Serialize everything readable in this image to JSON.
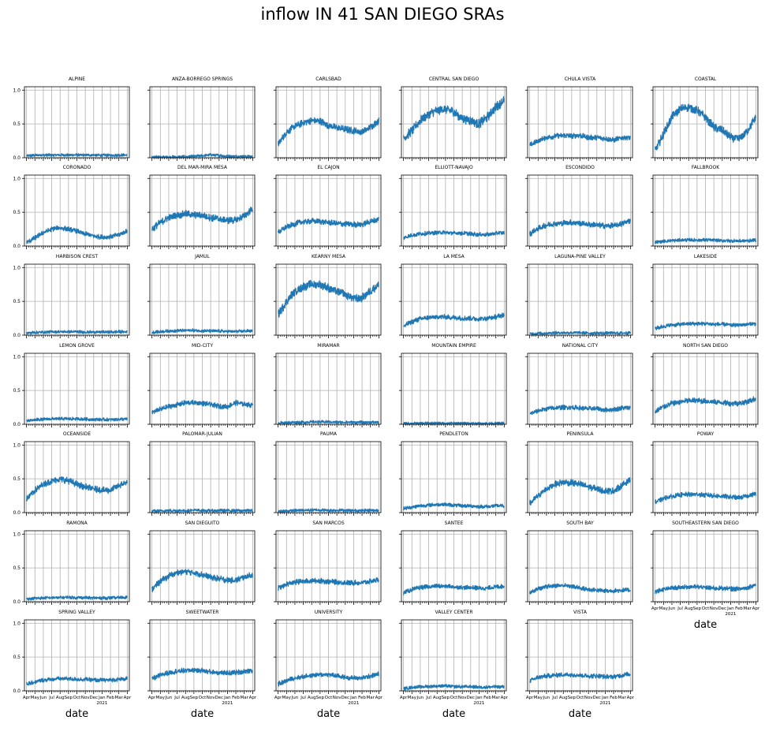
{
  "figure": {
    "title": "inflow IN 41 SAN DIEGO SRAs"
  },
  "chart_data": {
    "type": "line",
    "layout": "small-multiples",
    "x_axis": {
      "start": "2020-04",
      "end": "2021-04",
      "tick_labels": [
        "Apr",
        "May",
        "Jun",
        "Jul",
        "Aug",
        "Sep",
        "Oct",
        "Nov",
        "Dec",
        "Jan",
        "Feb",
        "Mar",
        "Apr"
      ],
      "year_label": "2021",
      "xlabel": "date"
    },
    "y_axis": {
      "ylim": [
        0,
        1.05
      ],
      "ticks": [
        0.0,
        0.5,
        1.0
      ],
      "tick_labels": [
        "0.0",
        "0.5",
        "1.0"
      ]
    },
    "grid": true,
    "series_color": "#1f77b4",
    "series": [
      {
        "name": "ALPINE",
        "values": [
          0.03,
          0.035,
          0.04,
          0.04,
          0.04,
          0.04,
          0.04,
          0.04,
          0.04,
          0.035,
          0.035,
          0.04,
          0.04
        ]
      },
      {
        "name": "ANZA-BORREGO SPRINGS",
        "values": [
          0.01,
          0.01,
          0.01,
          0.01,
          0.015,
          0.02,
          0.03,
          0.045,
          0.035,
          0.02,
          0.02,
          0.02,
          0.02
        ]
      },
      {
        "name": "CARLSBAD",
        "values": [
          0.2,
          0.38,
          0.46,
          0.52,
          0.55,
          0.54,
          0.48,
          0.44,
          0.42,
          0.4,
          0.38,
          0.45,
          0.55
        ]
      },
      {
        "name": "CENTRAL SAN DIEGO",
        "values": [
          0.28,
          0.4,
          0.55,
          0.65,
          0.7,
          0.72,
          0.68,
          0.58,
          0.55,
          0.5,
          0.6,
          0.75,
          0.85
        ]
      },
      {
        "name": "CHULA VISTA",
        "values": [
          0.18,
          0.25,
          0.3,
          0.32,
          0.33,
          0.32,
          0.33,
          0.3,
          0.3,
          0.28,
          0.26,
          0.3,
          0.3
        ]
      },
      {
        "name": "COASTAL",
        "values": [
          0.1,
          0.35,
          0.6,
          0.72,
          0.75,
          0.7,
          0.6,
          0.45,
          0.4,
          0.3,
          0.28,
          0.4,
          0.6
        ]
      },
      {
        "name": "CORONADO",
        "values": [
          0.05,
          0.12,
          0.2,
          0.25,
          0.27,
          0.25,
          0.22,
          0.18,
          0.15,
          0.13,
          0.14,
          0.17,
          0.22
        ]
      },
      {
        "name": "DEL MAR-MIRA MESA",
        "values": [
          0.25,
          0.35,
          0.42,
          0.45,
          0.48,
          0.46,
          0.45,
          0.42,
          0.4,
          0.38,
          0.38,
          0.45,
          0.55
        ]
      },
      {
        "name": "EL CAJON",
        "values": [
          0.2,
          0.28,
          0.33,
          0.36,
          0.37,
          0.36,
          0.35,
          0.33,
          0.33,
          0.32,
          0.32,
          0.36,
          0.4
        ]
      },
      {
        "name": "ELLIOTT-NAVAJO",
        "values": [
          0.12,
          0.16,
          0.18,
          0.19,
          0.2,
          0.2,
          0.19,
          0.19,
          0.18,
          0.17,
          0.17,
          0.19,
          0.2
        ]
      },
      {
        "name": "ESCONDIDO",
        "values": [
          0.18,
          0.26,
          0.31,
          0.33,
          0.34,
          0.35,
          0.34,
          0.32,
          0.31,
          0.3,
          0.3,
          0.33,
          0.38
        ]
      },
      {
        "name": "FALLBROOK",
        "values": [
          0.06,
          0.07,
          0.08,
          0.085,
          0.09,
          0.09,
          0.09,
          0.085,
          0.08,
          0.08,
          0.075,
          0.08,
          0.085
        ]
      },
      {
        "name": "HARBISON CREST",
        "values": [
          0.03,
          0.04,
          0.045,
          0.05,
          0.05,
          0.05,
          0.05,
          0.045,
          0.045,
          0.045,
          0.045,
          0.05,
          0.05
        ]
      },
      {
        "name": "JAMUL",
        "values": [
          0.04,
          0.05,
          0.06,
          0.065,
          0.07,
          0.07,
          0.065,
          0.06,
          0.06,
          0.055,
          0.055,
          0.06,
          0.065
        ]
      },
      {
        "name": "KEARNY MESA",
        "values": [
          0.3,
          0.5,
          0.65,
          0.72,
          0.75,
          0.75,
          0.7,
          0.65,
          0.6,
          0.55,
          0.55,
          0.65,
          0.75
        ]
      },
      {
        "name": "LA MESA",
        "values": [
          0.13,
          0.2,
          0.24,
          0.26,
          0.27,
          0.27,
          0.26,
          0.25,
          0.25,
          0.24,
          0.25,
          0.27,
          0.3
        ]
      },
      {
        "name": "LAGUNA-PINE VALLEY",
        "values": [
          0.02,
          0.025,
          0.03,
          0.035,
          0.035,
          0.035,
          0.035,
          0.03,
          0.03,
          0.03,
          0.03,
          0.03,
          0.035
        ]
      },
      {
        "name": "LAKESIDE",
        "values": [
          0.1,
          0.13,
          0.15,
          0.16,
          0.17,
          0.17,
          0.17,
          0.16,
          0.16,
          0.15,
          0.15,
          0.16,
          0.17
        ]
      },
      {
        "name": "LEMON GROVE",
        "values": [
          0.05,
          0.065,
          0.075,
          0.08,
          0.08,
          0.08,
          0.08,
          0.075,
          0.07,
          0.07,
          0.07,
          0.075,
          0.08
        ]
      },
      {
        "name": "MID-CITY",
        "values": [
          0.18,
          0.22,
          0.26,
          0.29,
          0.32,
          0.32,
          0.31,
          0.29,
          0.27,
          0.26,
          0.32,
          0.3,
          0.28
        ]
      },
      {
        "name": "MIRAMAR",
        "values": [
          0.02,
          0.025,
          0.03,
          0.03,
          0.035,
          0.035,
          0.035,
          0.03,
          0.03,
          0.03,
          0.03,
          0.03,
          0.03
        ]
      },
      {
        "name": "MOUNTAIN EMPIRE",
        "values": [
          0.01,
          0.012,
          0.015,
          0.015,
          0.015,
          0.015,
          0.015,
          0.015,
          0.012,
          0.012,
          0.012,
          0.012,
          0.015
        ]
      },
      {
        "name": "NATIONAL CITY",
        "values": [
          0.15,
          0.2,
          0.23,
          0.24,
          0.25,
          0.25,
          0.24,
          0.23,
          0.23,
          0.21,
          0.22,
          0.24,
          0.25
        ]
      },
      {
        "name": "NORTH SAN DIEGO",
        "values": [
          0.18,
          0.26,
          0.31,
          0.33,
          0.35,
          0.35,
          0.34,
          0.33,
          0.32,
          0.31,
          0.31,
          0.34,
          0.38
        ]
      },
      {
        "name": "OCEANSIDE",
        "values": [
          0.2,
          0.33,
          0.42,
          0.47,
          0.5,
          0.47,
          0.42,
          0.38,
          0.35,
          0.33,
          0.33,
          0.4,
          0.45
        ]
      },
      {
        "name": "PALOMAR-JULIAN",
        "values": [
          0.02,
          0.025,
          0.03,
          0.03,
          0.03,
          0.035,
          0.03,
          0.03,
          0.03,
          0.03,
          0.03,
          0.03,
          0.03
        ]
      },
      {
        "name": "PAUMA",
        "values": [
          0.02,
          0.025,
          0.03,
          0.035,
          0.035,
          0.04,
          0.035,
          0.035,
          0.035,
          0.03,
          0.03,
          0.035,
          0.035
        ]
      },
      {
        "name": "PENDLETON",
        "values": [
          0.06,
          0.08,
          0.1,
          0.11,
          0.12,
          0.12,
          0.11,
          0.1,
          0.1,
          0.09,
          0.09,
          0.1,
          0.1
        ]
      },
      {
        "name": "PENINSULA",
        "values": [
          0.13,
          0.25,
          0.35,
          0.42,
          0.45,
          0.44,
          0.42,
          0.38,
          0.35,
          0.32,
          0.32,
          0.4,
          0.5
        ]
      },
      {
        "name": "POWAY",
        "values": [
          0.15,
          0.21,
          0.24,
          0.26,
          0.27,
          0.27,
          0.26,
          0.25,
          0.24,
          0.23,
          0.22,
          0.25,
          0.28
        ]
      },
      {
        "name": "RAMONA",
        "values": [
          0.04,
          0.05,
          0.055,
          0.06,
          0.06,
          0.065,
          0.06,
          0.06,
          0.055,
          0.055,
          0.055,
          0.06,
          0.065
        ]
      },
      {
        "name": "SAN DIEGUITO",
        "values": [
          0.18,
          0.3,
          0.38,
          0.43,
          0.45,
          0.43,
          0.4,
          0.36,
          0.34,
          0.32,
          0.32,
          0.36,
          0.4
        ]
      },
      {
        "name": "SAN MARCOS",
        "values": [
          0.2,
          0.26,
          0.29,
          0.3,
          0.31,
          0.31,
          0.3,
          0.29,
          0.28,
          0.28,
          0.28,
          0.3,
          0.33
        ]
      },
      {
        "name": "SANTEE",
        "values": [
          0.13,
          0.18,
          0.21,
          0.22,
          0.23,
          0.23,
          0.22,
          0.21,
          0.21,
          0.2,
          0.2,
          0.22,
          0.23
        ]
      },
      {
        "name": "SOUTH BAY",
        "values": [
          0.14,
          0.19,
          0.22,
          0.24,
          0.24,
          0.23,
          0.2,
          0.18,
          0.17,
          0.16,
          0.16,
          0.17,
          0.17
        ]
      },
      {
        "name": "SOUTHEASTERN SAN DIEGO",
        "values": [
          0.15,
          0.18,
          0.2,
          0.21,
          0.22,
          0.22,
          0.21,
          0.2,
          0.2,
          0.19,
          0.19,
          0.21,
          0.25
        ]
      },
      {
        "name": "SPRING VALLEY",
        "values": [
          0.1,
          0.13,
          0.16,
          0.17,
          0.18,
          0.18,
          0.17,
          0.17,
          0.16,
          0.16,
          0.16,
          0.17,
          0.18
        ]
      },
      {
        "name": "SWEETWATER",
        "values": [
          0.18,
          0.23,
          0.27,
          0.29,
          0.3,
          0.31,
          0.3,
          0.28,
          0.27,
          0.26,
          0.27,
          0.29,
          0.3
        ]
      },
      {
        "name": "UNIVERSITY",
        "values": [
          0.1,
          0.15,
          0.19,
          0.21,
          0.23,
          0.24,
          0.24,
          0.22,
          0.2,
          0.19,
          0.19,
          0.22,
          0.25
        ]
      },
      {
        "name": "VALLEY CENTER",
        "values": [
          0.03,
          0.05,
          0.06,
          0.065,
          0.07,
          0.07,
          0.065,
          0.06,
          0.06,
          0.055,
          0.055,
          0.06,
          0.06
        ]
      },
      {
        "name": "VISTA",
        "values": [
          0.15,
          0.2,
          0.22,
          0.23,
          0.24,
          0.24,
          0.23,
          0.22,
          0.22,
          0.21,
          0.21,
          0.23,
          0.25
        ]
      }
    ]
  }
}
